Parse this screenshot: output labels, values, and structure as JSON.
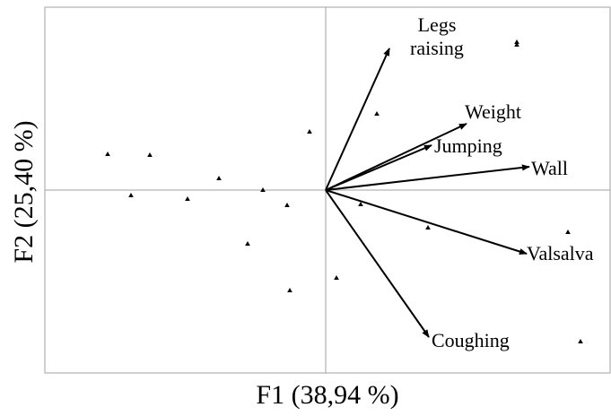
{
  "chart_data": {
    "type": "biplot",
    "xlabel": "F1 (38,94 %)",
    "ylabel": "F2 (25,40 %)",
    "xlim": [
      -1.252,
      1.268
    ],
    "ylim": [
      -0.816,
      0.816
    ],
    "color": "#000000",
    "points": {
      "x": [
        0.852,
        0.852,
        0.228,
        -0.072,
        -0.972,
        -0.784,
        -0.476,
        -0.28,
        -0.868,
        -0.616,
        -0.172,
        0.156,
        0.456,
        1.08,
        -0.348,
        0.048,
        -0.16,
        1.136
      ],
      "y": [
        0.66,
        0.648,
        0.34,
        0.26,
        0.16,
        0.156,
        0.052,
        0,
        -0.024,
        -0.04,
        -0.068,
        -0.064,
        -0.168,
        -0.188,
        -0.24,
        -0.392,
        -0.448,
        -0.676
      ]
    },
    "vectors": [
      {
        "name": "Legs raising",
        "x": 0.284,
        "y": 0.632
      },
      {
        "name": "Weight",
        "x": 0.628,
        "y": 0.296
      },
      {
        "name": "Jumping",
        "x": 0.472,
        "y": 0.2
      },
      {
        "name": "Wall",
        "x": 0.908,
        "y": 0.104
      },
      {
        "name": "Valsalva",
        "x": 0.896,
        "y": -0.284
      },
      {
        "name": "Coughing",
        "x": 0.46,
        "y": -0.656
      }
    ]
  }
}
